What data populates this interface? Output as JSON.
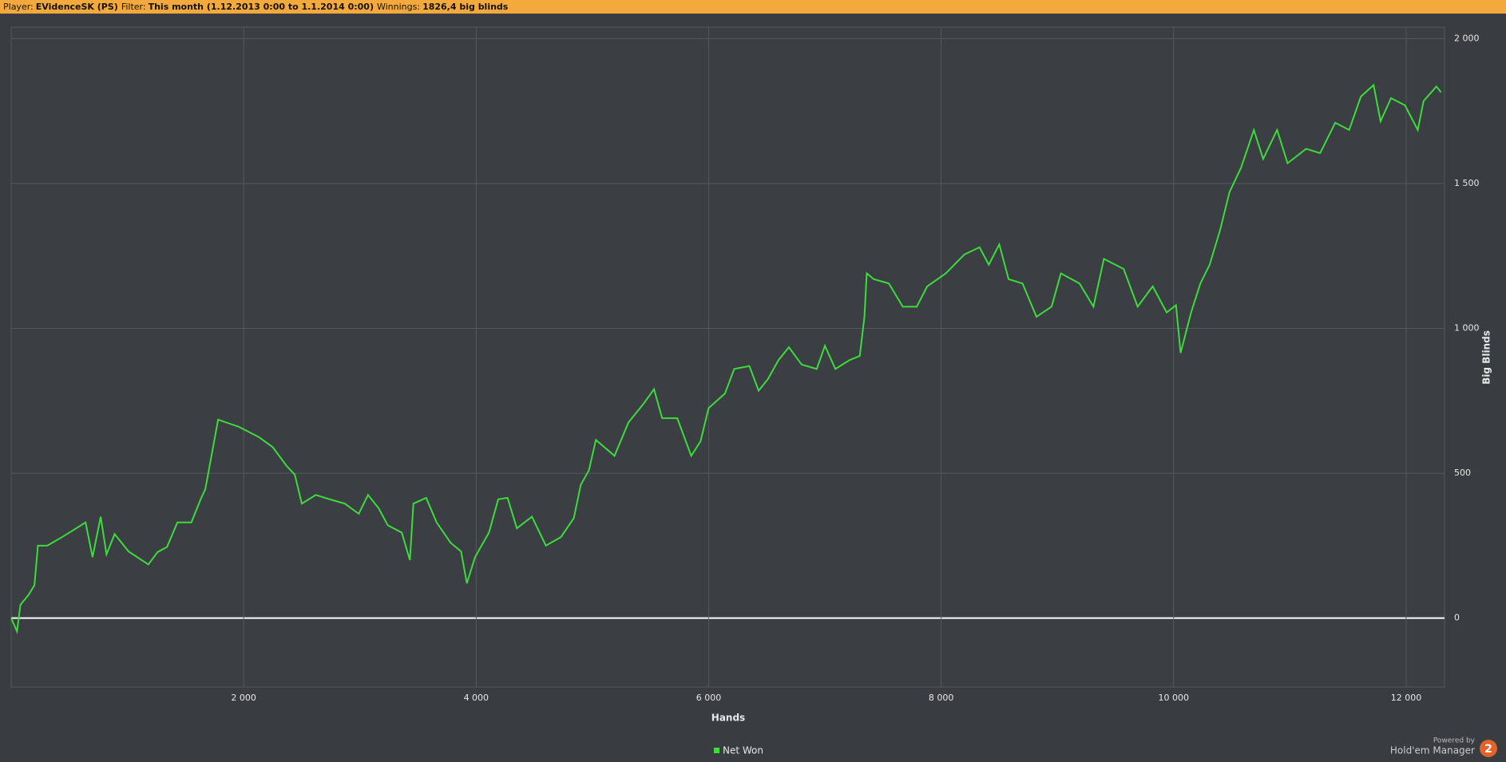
{
  "header": {
    "player_label": "Player:",
    "player": "EVidenceSK (PS)",
    "filter_label": "Filter:",
    "filter": "This month (1.12.2013 0:00 to 1.1.2014 0:00)",
    "winnings_label": "Winnings:",
    "winnings": "1826,4 big blinds"
  },
  "footer": {
    "powered_by": "Powered by",
    "product": "Hold'em Manager",
    "version": "2"
  },
  "chart_data": {
    "type": "line",
    "x_label": "Hands",
    "y_label": "Big Blinds",
    "xlim": [
      0,
      12330
    ],
    "ylim": [
      -238,
      2040
    ],
    "xticks": [
      {
        "value": 2000,
        "label": "2 000"
      },
      {
        "value": 4000,
        "label": "4 000"
      },
      {
        "value": 6000,
        "label": "6 000"
      },
      {
        "value": 8000,
        "label": "8 000"
      },
      {
        "value": 10000,
        "label": "10 000"
      },
      {
        "value": 12000,
        "label": "12 000"
      }
    ],
    "yticks": [
      0,
      500,
      {
        "value": 1000,
        "label": "1 000"
      },
      {
        "value": 1500,
        "label": "1 500"
      },
      {
        "value": 2000,
        "label": "2 000"
      }
    ],
    "grid": true,
    "zero_line_color": "#ffffff",
    "legend": "bottom",
    "x": [
      0,
      50,
      80,
      150,
      200,
      230,
      310,
      440,
      520,
      640,
      700,
      770,
      820,
      890,
      1010,
      1180,
      1260,
      1340,
      1430,
      1550,
      1630,
      1670,
      1730,
      1780,
      1960,
      2130,
      2250,
      2370,
      2440,
      2500,
      2620,
      2740,
      2870,
      2990,
      3070,
      3160,
      3240,
      3360,
      3430,
      3460,
      3570,
      3660,
      3780,
      3870,
      3920,
      3990,
      4110,
      4190,
      4270,
      4350,
      4480,
      4600,
      4730,
      4840,
      4900,
      4970,
      5030,
      5190,
      5310,
      5440,
      5530,
      5600,
      5730,
      5850,
      5930,
      6000,
      6140,
      6220,
      6350,
      6430,
      6510,
      6600,
      6690,
      6800,
      6930,
      7000,
      7090,
      7210,
      7300,
      7340,
      7360,
      7420,
      7550,
      7670,
      7790,
      7880,
      8040,
      8200,
      8330,
      8410,
      8500,
      8580,
      8700,
      8820,
      8950,
      9030,
      9190,
      9310,
      9400,
      9570,
      9690,
      9820,
      9940,
      10020,
      10060,
      10150,
      10230,
      10310,
      10400,
      10480,
      10580,
      10690,
      10770,
      10890,
      10980,
      11140,
      11260,
      11390,
      11510,
      11610,
      11720,
      11780,
      11870,
      11990,
      12100,
      12150,
      12260,
      12300
    ],
    "series": [
      {
        "name": "Net Won",
        "color": "#3ddc3d",
        "values": [
          0,
          -46,
          46,
          80,
          113,
          250,
          250,
          280,
          300,
          330,
          210,
          350,
          220,
          290,
          230,
          185,
          228,
          245,
          330,
          330,
          410,
          445,
          575,
          685,
          660,
          625,
          590,
          525,
          495,
          395,
          425,
          410,
          395,
          360,
          425,
          380,
          320,
          295,
          200,
          395,
          415,
          330,
          260,
          230,
          120,
          210,
          295,
          410,
          415,
          310,
          350,
          250,
          280,
          345,
          460,
          510,
          615,
          560,
          675,
          740,
          790,
          690,
          690,
          560,
          610,
          725,
          775,
          860,
          870,
          785,
          825,
          890,
          935,
          875,
          860,
          940,
          860,
          890,
          905,
          1040,
          1190,
          1170,
          1155,
          1075,
          1075,
          1145,
          1190,
          1255,
          1280,
          1220,
          1290,
          1170,
          1155,
          1040,
          1075,
          1190,
          1155,
          1075,
          1240,
          1205,
          1075,
          1145,
          1055,
          1080,
          915,
          1055,
          1155,
          1220,
          1340,
          1470,
          1555,
          1685,
          1585,
          1685,
          1570,
          1620,
          1605,
          1710,
          1685,
          1800,
          1840,
          1715,
          1795,
          1770,
          1685,
          1785,
          1835,
          1815
        ]
      }
    ]
  }
}
